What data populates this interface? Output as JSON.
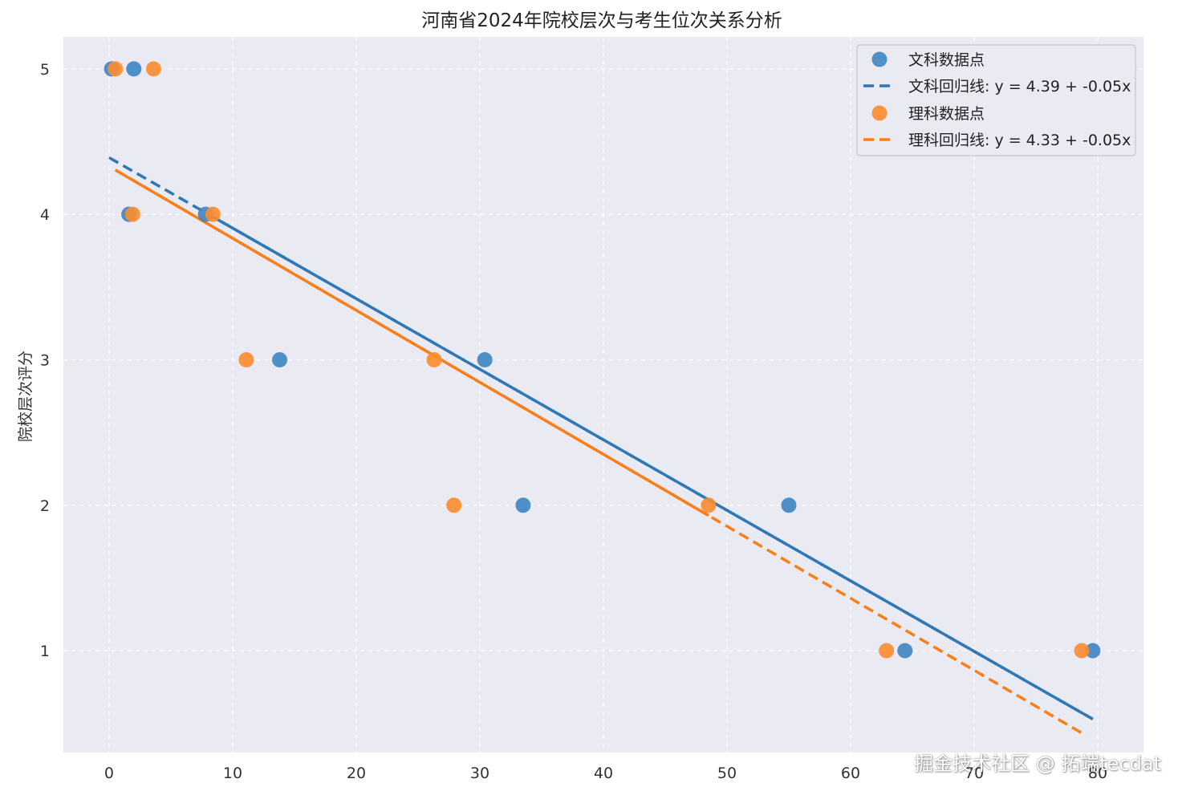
{
  "chart_data": {
    "type": "scatter",
    "title": "河南省2024年院校层次与考生位次关系分析",
    "xlabel": "",
    "ylabel": "院校层次评分",
    "xlim": [
      -3.7,
      83.7
    ],
    "ylim": [
      0.3,
      5.22
    ],
    "xticks": [
      0,
      10,
      20,
      30,
      40,
      50,
      60,
      70,
      80
    ],
    "yticks": [
      1,
      2,
      3,
      4,
      5
    ],
    "grid": true,
    "legend_position": "top-right",
    "series": [
      {
        "name": "文科数据点",
        "kind": "scatter",
        "color": "#3d85c2",
        "x": [
          0.2,
          2.0,
          1.6,
          7.8,
          13.8,
          30.4,
          33.5,
          55.0,
          64.4,
          79.6
        ],
        "y": [
          5,
          5,
          4,
          4,
          3,
          3,
          2,
          2,
          1,
          1
        ]
      },
      {
        "name": "文科回归线: y = 4.39 + -0.05x",
        "kind": "line",
        "color": "#2e78b8",
        "intercept": 4.39,
        "slope": -0.0485,
        "solid_range": [
          7.8,
          79.6
        ],
        "dashed_range": [
          0.0,
          79.6
        ]
      },
      {
        "name": "理科数据点",
        "kind": "scatter",
        "color": "#fb8c2e",
        "x": [
          0.5,
          3.6,
          1.9,
          8.4,
          11.1,
          26.3,
          27.9,
          48.5,
          62.9,
          78.7
        ],
        "y": [
          5,
          5,
          4,
          4,
          3,
          3,
          2,
          2,
          1,
          1
        ]
      },
      {
        "name": "理科回归线: y = 4.33 + -0.05x",
        "kind": "line",
        "color": "#fb7e16",
        "intercept": 4.33,
        "slope": -0.0495,
        "solid_range": [
          0.5,
          48.5
        ],
        "dashed_range": [
          0.5,
          78.7
        ]
      }
    ]
  },
  "watermark": "掘金技术社区 @ 拓端tecdat"
}
